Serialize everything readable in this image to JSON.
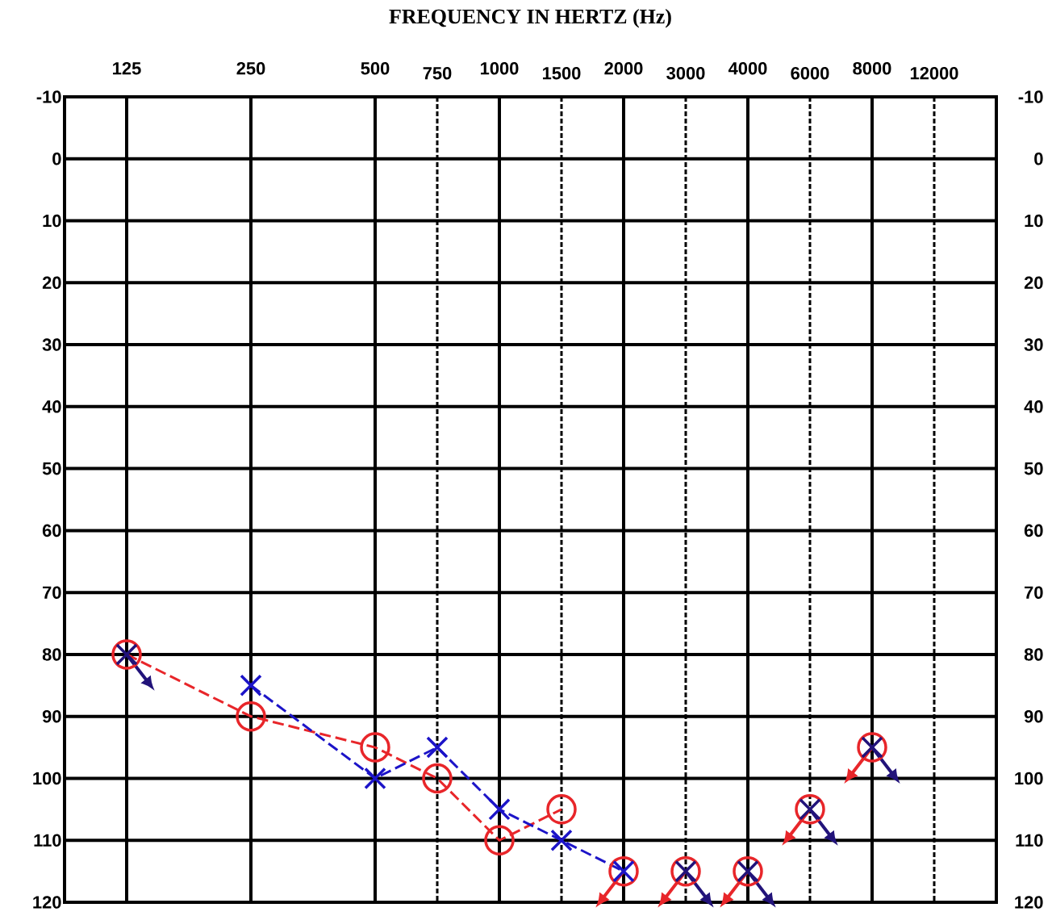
{
  "chart_data": {
    "type": "line",
    "title": "FREQUENCY IN HERTZ (Hz)",
    "categories": [
      "125",
      null,
      "250",
      null,
      "500",
      "750",
      "1000",
      "1500",
      "2000",
      "3000",
      "4000",
      "6000",
      "8000",
      "12000"
    ],
    "ylim": [
      120,
      -10
    ],
    "yticks": [
      -10,
      0,
      10,
      20,
      30,
      40,
      50,
      60,
      70,
      80,
      90,
      100,
      110,
      120
    ],
    "y2lim": [
      120,
      -10
    ],
    "y2ticks": [
      -10,
      0,
      10,
      20,
      30,
      40,
      50,
      60,
      70,
      80,
      90,
      100,
      110,
      120
    ],
    "grid": true,
    "line_style": "dashed",
    "series": [
      {
        "color": "#e8262a",
        "marker": "circle",
        "values": [
          80,
          null,
          90,
          null,
          95,
          100,
          110,
          105,
          null,
          null,
          null,
          null,
          null,
          null
        ]
      },
      {
        "type": "scatter",
        "color": "#e8262a",
        "marker": "circle",
        "values": [
          null,
          null,
          null,
          null,
          null,
          null,
          null,
          null,
          115,
          115,
          115,
          105,
          95,
          null
        ]
      },
      {
        "color": "#1c14c8",
        "marker": "cross",
        "values": [
          null,
          null,
          85,
          null,
          100,
          95,
          105,
          110,
          115,
          null,
          null,
          null,
          null,
          null
        ]
      },
      {
        "type": "scatter",
        "color": "#22137a",
        "marker": "cross",
        "values": [
          80,
          null,
          null,
          null,
          null,
          null,
          null,
          null,
          null,
          115,
          115,
          105,
          95,
          null
        ]
      }
    ]
  }
}
